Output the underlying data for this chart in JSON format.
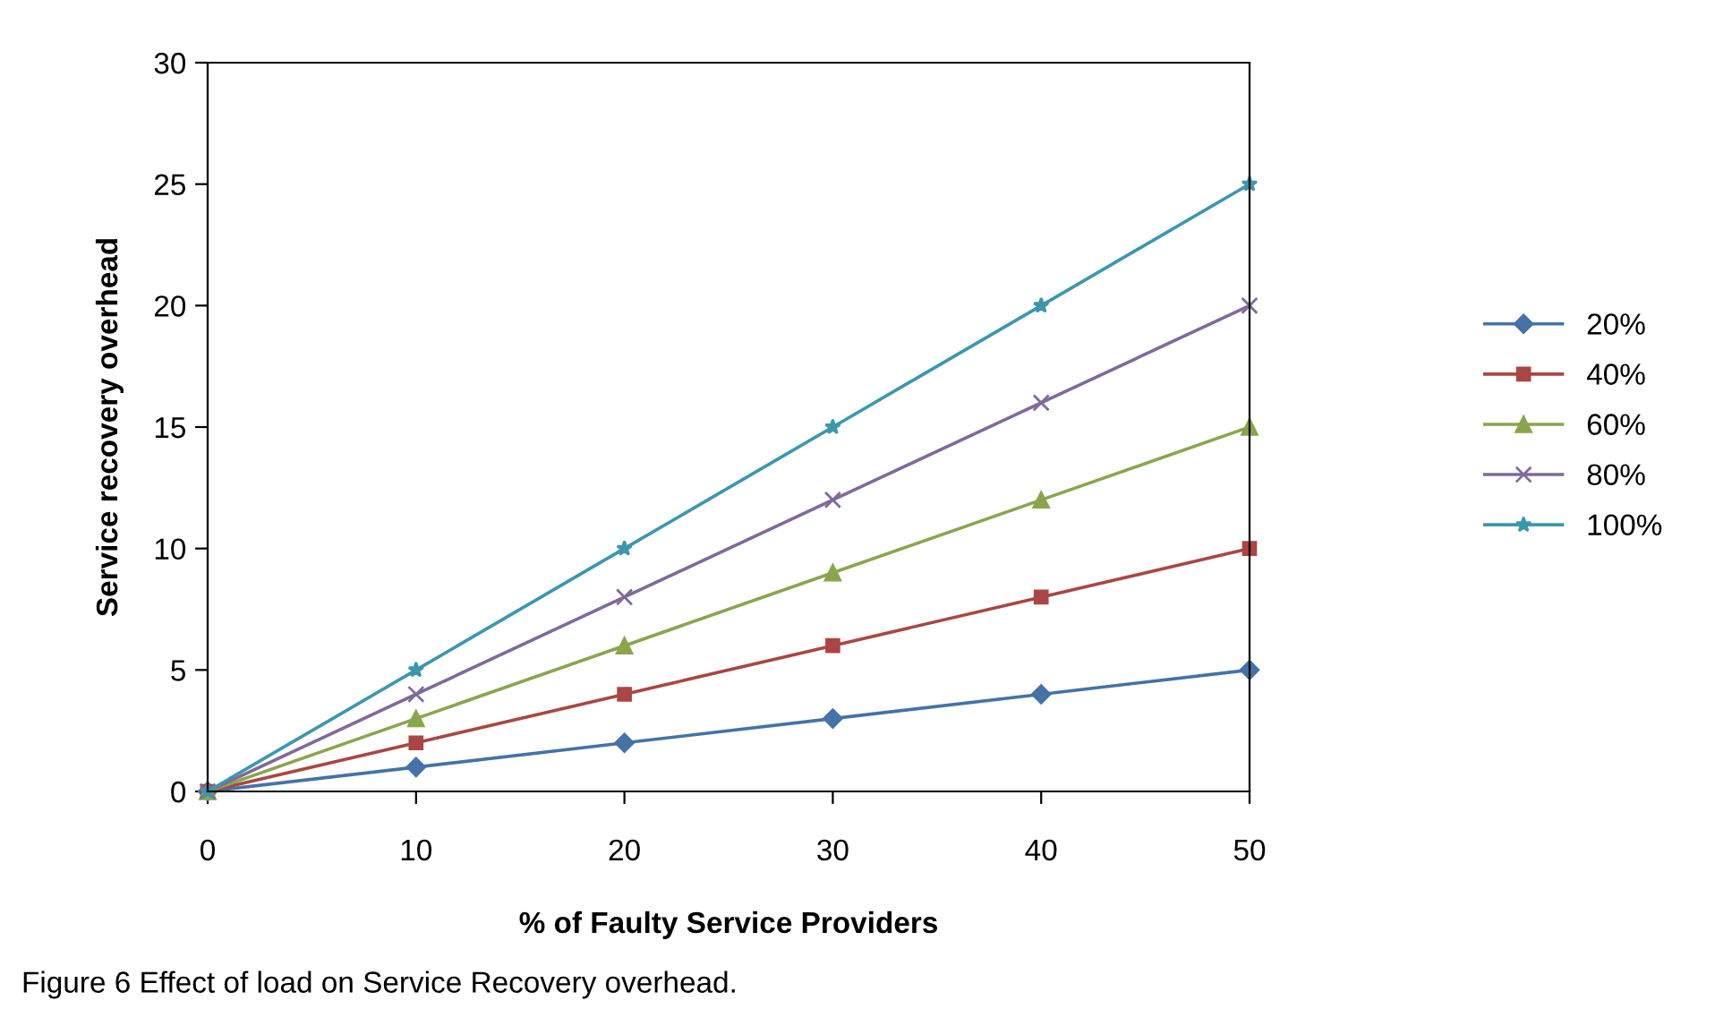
{
  "chart_data": {
    "type": "line",
    "xlabel": "% of Faulty Service Providers",
    "ylabel": "Service recovery overhead",
    "x": [
      0,
      10,
      20,
      30,
      40,
      50
    ],
    "series": [
      {
        "name": "20%",
        "color": "#4572a7",
        "marker": "diamond",
        "values": [
          0,
          1,
          2,
          3,
          4,
          5
        ]
      },
      {
        "name": "40%",
        "color": "#aa4643",
        "marker": "square",
        "values": [
          0,
          2,
          4,
          6,
          8,
          10
        ]
      },
      {
        "name": "60%",
        "color": "#89a54e",
        "marker": "triangle",
        "values": [
          0,
          3,
          6,
          9,
          12,
          15
        ]
      },
      {
        "name": "80%",
        "color": "#80699b",
        "marker": "cross",
        "values": [
          0,
          4,
          8,
          12,
          16,
          20
        ]
      },
      {
        "name": "100%",
        "color": "#3d96ae",
        "marker": "star",
        "values": [
          0,
          5,
          10,
          15,
          20,
          25
        ]
      }
    ],
    "xlim": [
      0,
      50
    ],
    "xticks": [
      0,
      10,
      20,
      30,
      40,
      50
    ],
    "ylim": [
      0,
      30
    ],
    "yticks": [
      0,
      5,
      10,
      15,
      20,
      25,
      30
    ],
    "grid": false,
    "legend": "right",
    "line_style": "solid",
    "annotations": [
      "Figure 6 Effect of load on Service Recovery overhead."
    ]
  }
}
